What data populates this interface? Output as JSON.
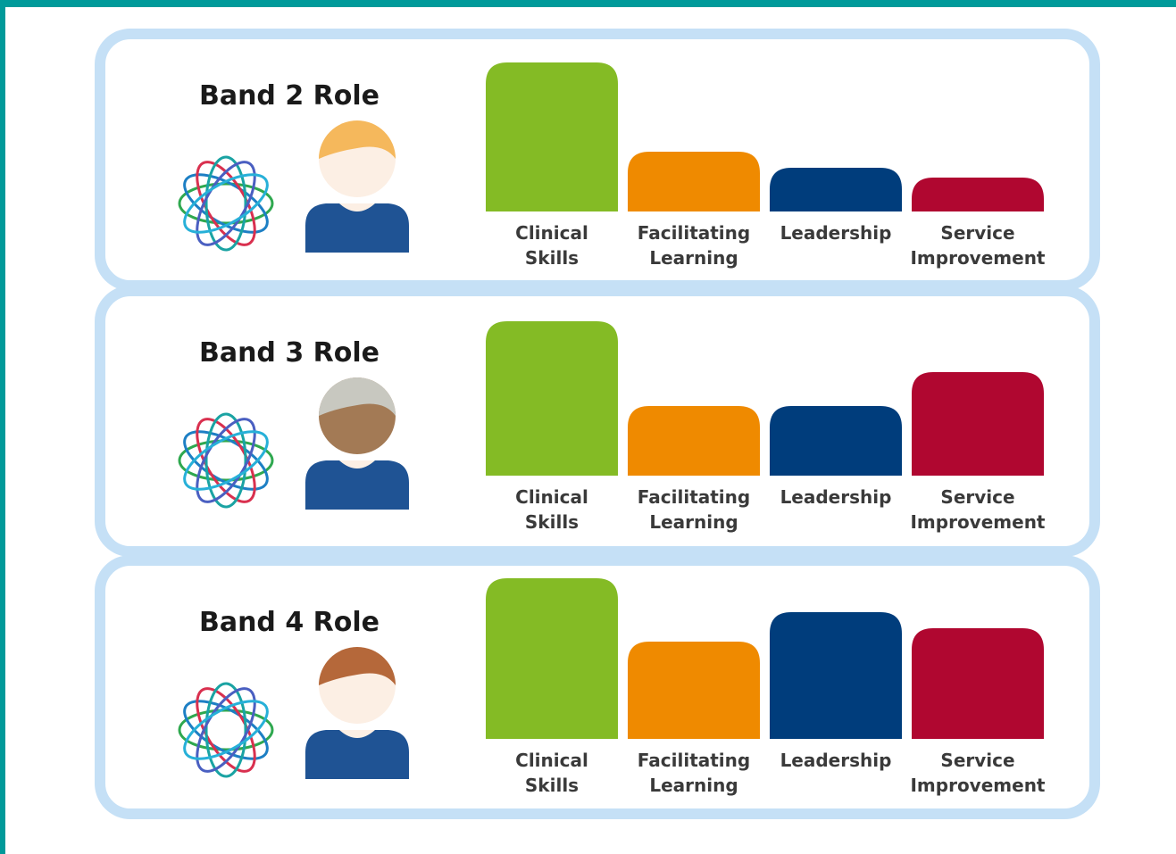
{
  "chart_data": [
    {
      "type": "bar",
      "title": "Band 2 Role",
      "categories": [
        "Clinical Skills",
        "Facilitating Learning",
        "Leadership",
        "Service Improvement"
      ],
      "values": [
        167,
        67,
        49,
        38
      ],
      "colors": [
        "#84bb25",
        "#ef8a00",
        "#003d7c",
        "#b00730"
      ],
      "ylim": [
        0,
        180
      ]
    },
    {
      "type": "bar",
      "title": "Band 3 Role",
      "categories": [
        "Clinical Skills",
        "Facilitating Learning",
        "Leadership",
        "Service Improvement"
      ],
      "values": [
        173,
        78,
        78,
        116
      ],
      "colors": [
        "#84bb25",
        "#ef8a00",
        "#003d7c",
        "#b00730"
      ],
      "ylim": [
        0,
        180
      ]
    },
    {
      "type": "bar",
      "title": "Band 4 Role",
      "categories": [
        "Clinical Skills",
        "Facilitating Learning",
        "Leadership",
        "Service Improvement"
      ],
      "values": [
        180,
        109,
        142,
        124
      ],
      "colors": [
        "#84bb25",
        "#ef8a00",
        "#003d7c",
        "#b00730"
      ],
      "ylim": [
        0,
        180
      ]
    }
  ]
}
